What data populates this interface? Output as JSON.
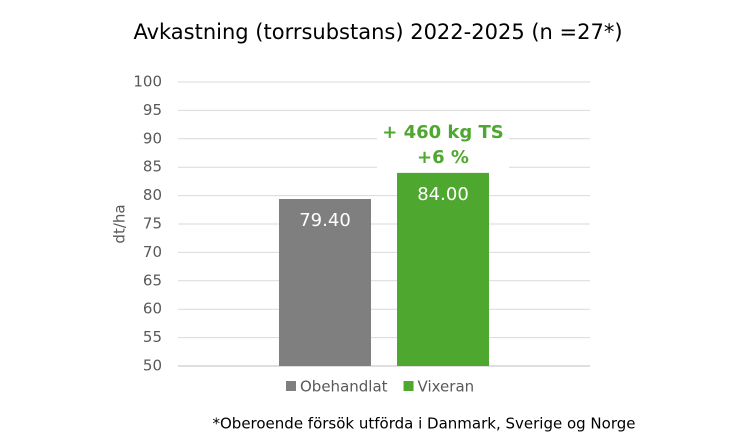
{
  "chart_data": {
    "type": "bar",
    "title": "Avkastning (torrsubstans) 2022-2025 (n =27*)",
    "y_label": "dt/ha",
    "series": [
      {
        "name": "Obehandlat",
        "color": "#7f7f7f",
        "values": [
          79.4
        ],
        "value_labels": [
          "79.40"
        ]
      },
      {
        "name": "Vixeran",
        "color": "#4ea72e",
        "values": [
          84
        ],
        "value_labels": [
          "84.00"
        ]
      }
    ],
    "annotations": [
      "+ 460 kg TS",
      "+6 %"
    ],
    "footnote": "*Oberoende försök utförda i Danmark, Sverige og Norge",
    "ylim": [
      50,
      100
    ],
    "yticks": [
      50,
      55,
      60,
      65,
      70,
      75,
      80,
      85,
      90,
      95,
      100
    ],
    "grid": true
  }
}
